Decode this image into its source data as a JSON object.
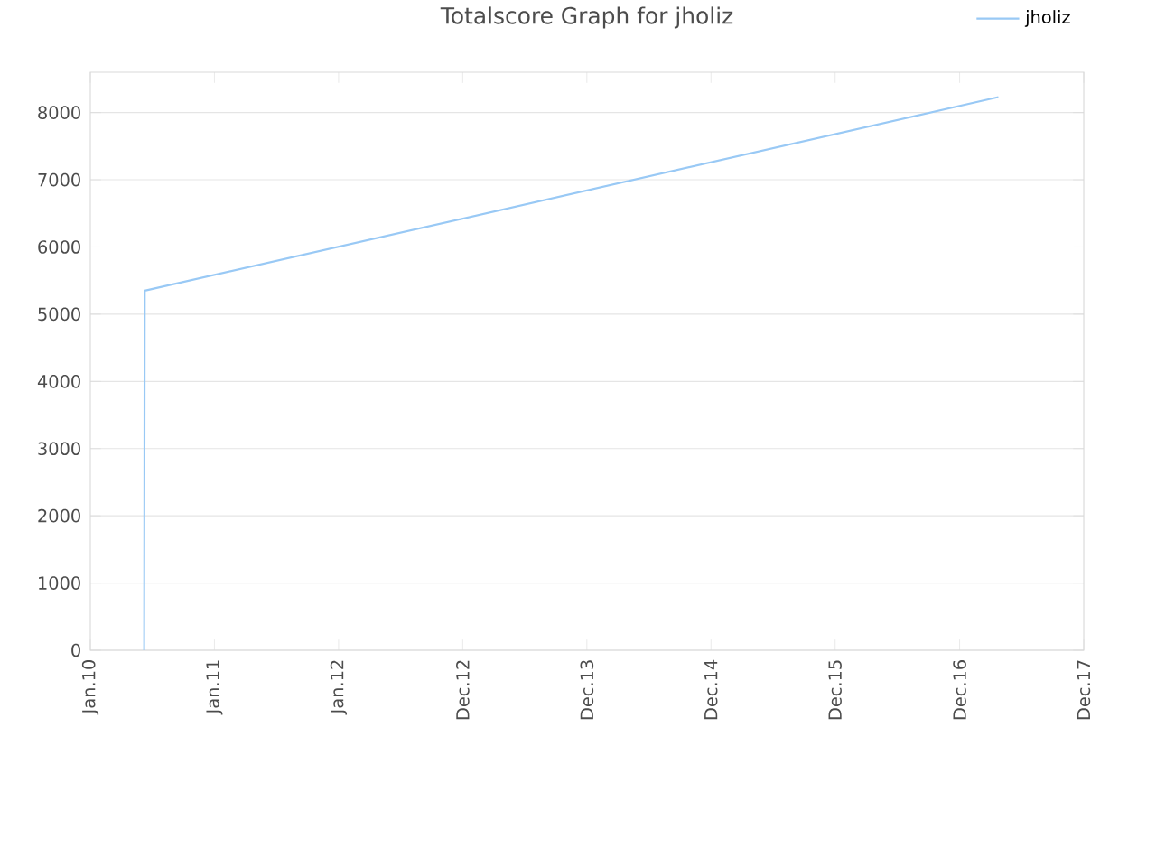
{
  "chart_data": {
    "type": "line",
    "title": "Totalscore Graph for jholiz",
    "x": [
      "2010-06-08",
      "2010-06-10",
      "2017-04-24"
    ],
    "series": [
      {
        "name": "jholiz",
        "color": "#99c9f5",
        "values": [
          0,
          5350,
          8230
        ]
      }
    ],
    "xlim": [
      "2010-01-01",
      "2017-12-31"
    ],
    "xticks": [
      {
        "value": "2010-01-01",
        "label": "Jan.10"
      },
      {
        "value": "2011-01-01",
        "label": "Jan.11"
      },
      {
        "value": "2012-01-01",
        "label": "Jan.12"
      },
      {
        "value": "2012-12-31",
        "label": "Dec.12"
      },
      {
        "value": "2013-12-31",
        "label": "Dec.13"
      },
      {
        "value": "2014-12-31",
        "label": "Dec.14"
      },
      {
        "value": "2015-12-31",
        "label": "Dec.15"
      },
      {
        "value": "2016-12-31",
        "label": "Dec.16"
      },
      {
        "value": "2017-12-31",
        "label": "Dec.17"
      }
    ],
    "ylim": [
      0,
      8600
    ],
    "yticks": [
      0,
      1000,
      2000,
      3000,
      4000,
      5000,
      6000,
      7000,
      8000
    ],
    "grid": "y",
    "legend": "top right",
    "marker": "none",
    "line_style": "solid"
  }
}
